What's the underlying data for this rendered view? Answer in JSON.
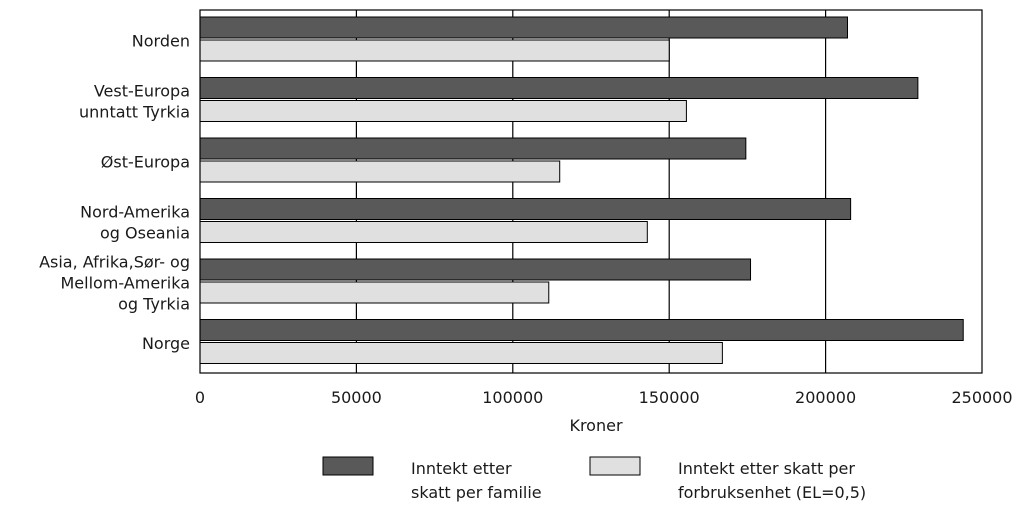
{
  "chart_data": {
    "type": "bar",
    "orientation": "horizontal",
    "title": "",
    "xlabel": "Kroner",
    "ylabel": "",
    "xlim": [
      0,
      250000
    ],
    "xticks": [
      0,
      50000,
      100000,
      150000,
      200000,
      250000
    ],
    "xtick_labels": [
      "0",
      "50000",
      "100000",
      "150000",
      "200000",
      "250000"
    ],
    "grid": "vertical",
    "legend_position": "bottom",
    "categories": [
      [
        "Norden"
      ],
      [
        "Vest-Europa",
        "unntatt Tyrkia"
      ],
      [
        "Øst-Europa"
      ],
      [
        "Nord-Amerika",
        "og Oseania"
      ],
      [
        "Asia, Afrika,Sør- og",
        "Mellom-Amerika",
        "og Tyrkia"
      ],
      [
        "Norge"
      ]
    ],
    "series": [
      {
        "name": [
          "Inntekt etter",
          "skatt per familie"
        ],
        "color": "#595959",
        "values": [
          207000,
          229500,
          174500,
          208000,
          176000,
          244000
        ]
      },
      {
        "name": [
          "Inntekt etter skatt per",
          "forbruksenhet (EL=0,5)"
        ],
        "color": "#e0e0e0",
        "values": [
          150000,
          155500,
          115000,
          143000,
          111500,
          167000
        ]
      }
    ]
  }
}
